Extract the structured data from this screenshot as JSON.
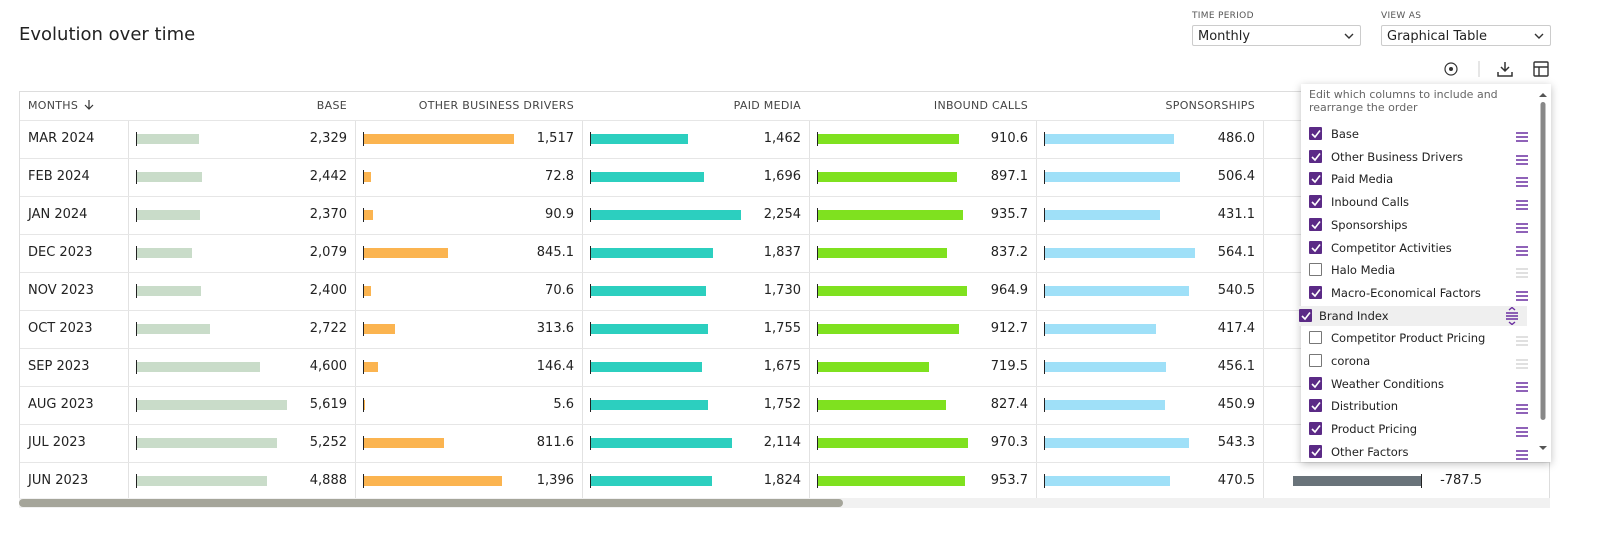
{
  "header": {
    "title": "Evolution over time"
  },
  "controls": [
    {
      "label": "TIME PERIOD",
      "value": "Monthly"
    },
    {
      "label": "VIEW AS",
      "value": "Graphical Table"
    }
  ],
  "table": {
    "columns": [
      {
        "name": "MONTHS",
        "color": null
      },
      {
        "name": "BASE",
        "color": "#c9dcc9"
      },
      {
        "name": "OTHER BUSINESS DRIVERS",
        "color": "#fbb450"
      },
      {
        "name": "PAID MEDIA",
        "color": "#2ccfbf"
      },
      {
        "name": "INBOUND CALLS",
        "color": "#7fe11f"
      },
      {
        "name": "SPONSORSHIPS",
        "color": "#9fe0f8"
      },
      {
        "name": null,
        "color": "#69737a"
      }
    ],
    "rows": [
      {
        "month": "MAR 2024",
        "cells": [
          {
            "value": 2329,
            "label": "2,329"
          },
          {
            "value": 1517,
            "label": "1,517"
          },
          {
            "value": 1462,
            "label": "1,462"
          },
          {
            "value": 910.6,
            "label": "910.6"
          },
          {
            "value": 486,
            "label": "486.0"
          },
          null
        ]
      },
      {
        "month": "FEB 2024",
        "cells": [
          {
            "value": 2442,
            "label": "2,442"
          },
          {
            "value": 72.8,
            "label": "72.8"
          },
          {
            "value": 1696,
            "label": "1,696"
          },
          {
            "value": 897.1,
            "label": "897.1"
          },
          {
            "value": 506.4,
            "label": "506.4"
          },
          null
        ]
      },
      {
        "month": "JAN 2024",
        "cells": [
          {
            "value": 2370,
            "label": "2,370"
          },
          {
            "value": 90.9,
            "label": "90.9"
          },
          {
            "value": 2254,
            "label": "2,254"
          },
          {
            "value": 935.7,
            "label": "935.7"
          },
          {
            "value": 431.1,
            "label": "431.1"
          },
          null
        ]
      },
      {
        "month": "DEC 2023",
        "cells": [
          {
            "value": 2079,
            "label": "2,079"
          },
          {
            "value": 845.1,
            "label": "845.1"
          },
          {
            "value": 1837,
            "label": "1,837"
          },
          {
            "value": 837.2,
            "label": "837.2"
          },
          {
            "value": 564.1,
            "label": "564.1"
          },
          null
        ]
      },
      {
        "month": "NOV 2023",
        "cells": [
          {
            "value": 2400,
            "label": "2,400"
          },
          {
            "value": 70.6,
            "label": "70.6"
          },
          {
            "value": 1730,
            "label": "1,730"
          },
          {
            "value": 964.9,
            "label": "964.9"
          },
          {
            "value": 540.5,
            "label": "540.5"
          },
          null
        ]
      },
      {
        "month": "OCT 2023",
        "cells": [
          {
            "value": 2722,
            "label": "2,722"
          },
          {
            "value": 313.6,
            "label": "313.6"
          },
          {
            "value": 1755,
            "label": "1,755"
          },
          {
            "value": 912.7,
            "label": "912.7"
          },
          {
            "value": 417.4,
            "label": "417.4"
          },
          null
        ]
      },
      {
        "month": "SEP 2023",
        "cells": [
          {
            "value": 4600,
            "label": "4,600"
          },
          {
            "value": 146.4,
            "label": "146.4"
          },
          {
            "value": 1675,
            "label": "1,675"
          },
          {
            "value": 719.5,
            "label": "719.5"
          },
          {
            "value": 456.1,
            "label": "456.1"
          },
          null
        ]
      },
      {
        "month": "AUG 2023",
        "cells": [
          {
            "value": 5619,
            "label": "5,619"
          },
          {
            "value": 5.6,
            "label": "5.6"
          },
          {
            "value": 1752,
            "label": "1,752"
          },
          {
            "value": 827.4,
            "label": "827.4"
          },
          {
            "value": 450.9,
            "label": "450.9"
          },
          null
        ]
      },
      {
        "month": "JUL 2023",
        "cells": [
          {
            "value": 5252,
            "label": "5,252"
          },
          {
            "value": 811.6,
            "label": "811.6"
          },
          {
            "value": 2114,
            "label": "2,114"
          },
          {
            "value": 970.3,
            "label": "970.3"
          },
          {
            "value": 543.3,
            "label": "543.3"
          },
          null
        ]
      },
      {
        "month": "JUN 2023",
        "cells": [
          {
            "value": 4888,
            "label": "4,888"
          },
          {
            "value": 1396,
            "label": "1,396"
          },
          {
            "value": 1824,
            "label": "1,824"
          },
          {
            "value": 953.7,
            "label": "953.7"
          },
          {
            "value": 470.5,
            "label": "470.5"
          },
          {
            "value": -787.5,
            "label": "-787.5"
          }
        ]
      }
    ]
  },
  "column_editor": {
    "hint": "Edit which columns to include and rearrange the order",
    "items": [
      {
        "label": "Base",
        "checked": true
      },
      {
        "label": "Other Business Drivers",
        "checked": true
      },
      {
        "label": "Paid Media",
        "checked": true
      },
      {
        "label": "Inbound Calls",
        "checked": true
      },
      {
        "label": "Sponsorships",
        "checked": true
      },
      {
        "label": "Competitor Activities",
        "checked": true
      },
      {
        "label": "Halo Media",
        "checked": false
      },
      {
        "label": "Macro-Economical Factors",
        "checked": true
      },
      {
        "label": "Brand Index",
        "checked": true,
        "dragging": true
      },
      {
        "label": "Competitor Product Pricing",
        "checked": false
      },
      {
        "label": "corona",
        "checked": false
      },
      {
        "label": "Weather Conditions",
        "checked": true
      },
      {
        "label": "Distribution",
        "checked": true
      },
      {
        "label": "Product Pricing",
        "checked": true
      },
      {
        "label": "Other Factors",
        "checked": true
      }
    ]
  }
}
